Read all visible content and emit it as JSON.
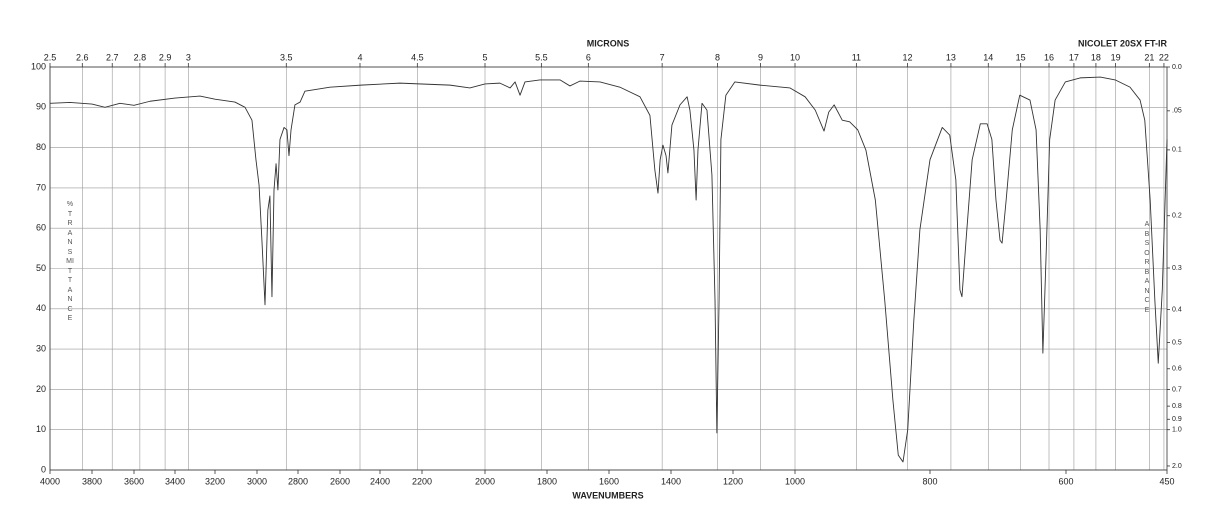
{
  "chart_data": {
    "type": "line",
    "title": "NICOLET 20SX FT-IR",
    "x_label": "WAVENUMBERS",
    "x2_label": "MICRONS",
    "y_label": "%TRANSMITTANCE",
    "y2_label": "ABSORBANCE",
    "color": "#333333",
    "grid": true,
    "xlim": [
      4000,
      450
    ],
    "ylim": [
      0,
      100
    ],
    "xticks": [
      4000,
      3800,
      3600,
      3400,
      3200,
      3000,
      2800,
      2600,
      2400,
      2200,
      2000,
      1800,
      1600,
      1400,
      1200,
      1000,
      800,
      600,
      450
    ],
    "yticks": [
      0,
      10,
      20,
      30,
      40,
      50,
      60,
      70,
      80,
      90,
      100
    ],
    "x2ticks": [
      2.5,
      2.6,
      2.7,
      2.8,
      2.9,
      3,
      3.5,
      4,
      4.5,
      5,
      5.5,
      6,
      7,
      8,
      9,
      10,
      11,
      12,
      13,
      14,
      15,
      16,
      17,
      18,
      19,
      21,
      22
    ],
    "y2ticks": [
      {
        "value": 0,
        "label": "0.0"
      },
      {
        "value": 0.05,
        "label": ".05"
      },
      {
        "value": 0.1,
        "label": "0.1"
      },
      0.2,
      0.3,
      0.4,
      0.5,
      0.6,
      0.7,
      0.8,
      0.9,
      {
        "value": 1,
        "label": "1.0"
      },
      {
        "value": 2,
        "label": "2.0"
      }
    ],
    "x": [
      4000,
      3905,
      3800,
      3738,
      3667,
      3600,
      3522,
      3400,
      3275,
      3200,
      3105,
      3057,
      3024,
      3005,
      2990,
      2976,
      2961,
      2947,
      2937,
      2927,
      2917,
      2907,
      2898,
      2888,
      2868,
      2854,
      2844,
      2834,
      2815,
      2790,
      2767,
      2648,
      2495,
      2305,
      2111,
      2048,
      2000,
      1952,
      1919,
      1903,
      1887,
      1871,
      1823,
      1758,
      1726,
      1694,
      1629,
      1565,
      1500,
      1468,
      1452,
      1442,
      1435,
      1426,
      1416,
      1410,
      1397,
      1371,
      1348,
      1339,
      1326,
      1319,
      1313,
      1300,
      1284,
      1268,
      1258,
      1252,
      1245,
      1239,
      1223,
      1194,
      1113,
      1016,
      985,
      970,
      957,
      950,
      942,
      930,
      919,
      907,
      895,
      881,
      867,
      855,
      847,
      840,
      833,
      824,
      815,
      800,
      782,
      771,
      762,
      756,
      753,
      747,
      738,
      726,
      716,
      709,
      703,
      697,
      694,
      688,
      679,
      668,
      653,
      644,
      638,
      634,
      629,
      624,
      616,
      601,
      579,
      549,
      527,
      505,
      490,
      483,
      475,
      468,
      463,
      457,
      450
    ],
    "values": [
      91,
      91.2,
      90.8,
      90,
      91,
      90.5,
      91.5,
      92.3,
      92.8,
      92,
      91.3,
      90,
      86.8,
      77,
      70.7,
      57,
      41,
      64.5,
      68,
      43,
      69.5,
      76,
      69.5,
      82,
      85,
      84.4,
      78,
      84.4,
      90.6,
      91.3,
      94,
      95,
      95.5,
      96,
      95.5,
      94.8,
      95.8,
      96,
      94.8,
      96.3,
      93,
      96.3,
      96.8,
      96.8,
      95.3,
      96.5,
      96.3,
      95,
      92.6,
      88,
      74.4,
      68.7,
      77,
      80.6,
      78,
      73.7,
      85.6,
      90.6,
      92.6,
      89.3,
      79.4,
      67,
      79.4,
      91,
      89.3,
      73.2,
      42,
      9.2,
      42,
      82,
      93,
      96.3,
      95.5,
      94.8,
      92.6,
      89.3,
      84.1,
      88.8,
      90.6,
      86.8,
      86.4,
      84.4,
      79.4,
      67,
      42,
      17.4,
      3.7,
      2,
      10,
      37,
      59.6,
      77,
      85,
      83.1,
      72,
      44.7,
      43,
      57,
      77,
      85.9,
      85.9,
      82,
      67,
      57,
      56.3,
      67,
      84.4,
      93,
      91.8,
      84.4,
      59.6,
      29,
      54.6,
      82,
      91.8,
      96.3,
      97.3,
      97.5,
      96.8,
      95,
      91.8,
      86.8,
      67,
      42,
      26.5,
      44.7,
      82
    ]
  }
}
